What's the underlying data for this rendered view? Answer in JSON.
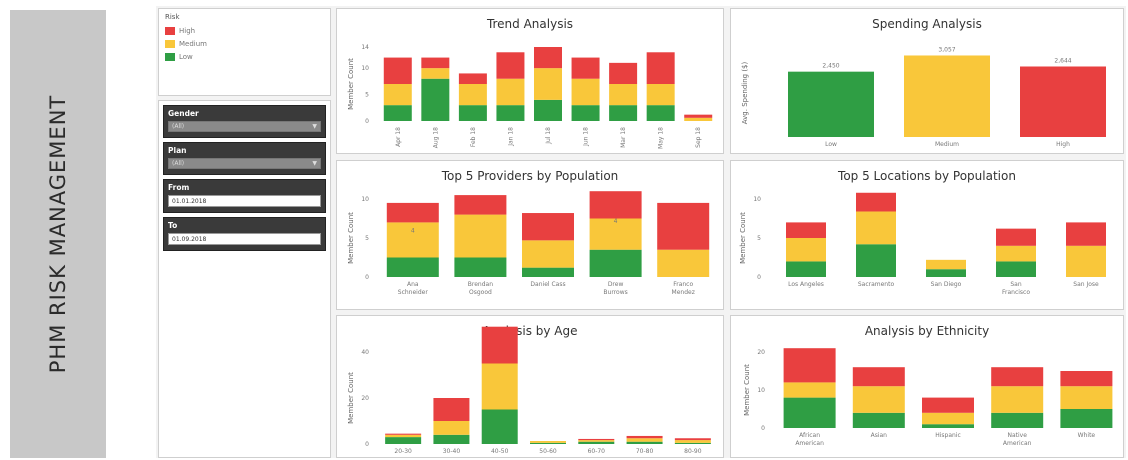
{
  "app": {
    "banner_title": "PHM RISK MANAGEMENT"
  },
  "legend": {
    "title": "Risk",
    "items": [
      {
        "label": "High",
        "color": "#e84040"
      },
      {
        "label": "Medium",
        "color": "#f9c73a"
      },
      {
        "label": "Low",
        "color": "#2f9e44"
      }
    ]
  },
  "filters": {
    "gender": {
      "label": "Gender",
      "value": "(All)"
    },
    "plan": {
      "label": "Plan",
      "value": "(All)"
    },
    "from": {
      "label": "From",
      "value": "01.01.2018"
    },
    "to": {
      "label": "To",
      "value": "01.09.2018"
    }
  },
  "chart_data": [
    {
      "id": "trend",
      "type": "bar",
      "title": "Trend Analysis",
      "ylabel": "Member Count",
      "ylim": [
        0,
        14
      ],
      "yticks": [
        0,
        5,
        10,
        14
      ],
      "categories": [
        "Apr 18",
        "Aug 18",
        "Feb 18",
        "Jan 18",
        "Jul 18",
        "Jun 18",
        "Mar 18",
        "May 18",
        "Sep 18"
      ],
      "series": [
        {
          "name": "Low",
          "values": [
            3,
            8,
            3,
            3,
            4,
            3,
            3,
            3,
            0
          ]
        },
        {
          "name": "Medium",
          "values": [
            4,
            2,
            4,
            5,
            6,
            5,
            4,
            4,
            0.6
          ]
        },
        {
          "name": "High",
          "values": [
            5,
            2,
            2,
            5,
            4,
            4,
            4,
            6,
            0.6
          ]
        }
      ]
    },
    {
      "id": "spending",
      "type": "bar",
      "title": "Spending Analysis",
      "ylabel": "Avg. Spending ($)",
      "ylim": [
        0,
        3300
      ],
      "categories": [
        "Low",
        "Medium",
        "High"
      ],
      "values": [
        2450,
        3057,
        2644
      ],
      "labels": [
        "2,450",
        "3,057",
        "2,644"
      ],
      "colors": [
        "#2f9e44",
        "#f9c73a",
        "#e84040"
      ]
    },
    {
      "id": "providers",
      "type": "bar",
      "title": "Top 5 Providers by Population",
      "ylabel": "Member Count",
      "ylim": [
        0,
        10
      ],
      "yticks": [
        0,
        5,
        10
      ],
      "categories": [
        "Ana Schneider",
        "Brendan Osgood",
        "Daniel Cass",
        "Drew Burrows",
        "Franco Mendez"
      ],
      "series": [
        {
          "name": "Low",
          "values": [
            2.5,
            2.5,
            1.2,
            3.5,
            0
          ]
        },
        {
          "name": "Medium",
          "values": [
            4.5,
            5.5,
            3.5,
            4,
            3.5
          ]
        },
        {
          "name": "High",
          "values": [
            2.5,
            2.5,
            3.5,
            3.5,
            6
          ]
        }
      ],
      "bar_labels": [
        {
          "index": 0,
          "text": "4"
        },
        {
          "index": 3,
          "text": "4"
        }
      ]
    },
    {
      "id": "locations",
      "type": "bar",
      "title": "Top 5 Locations by Population",
      "ylabel": "Member Count",
      "ylim": [
        0,
        10
      ],
      "yticks": [
        0,
        5,
        10
      ],
      "categories": [
        "Los Angeles",
        "Sacramento",
        "San Diego",
        "San Francisco",
        "San Jose"
      ],
      "series": [
        {
          "name": "Low",
          "values": [
            2,
            4.2,
            1,
            2,
            0
          ]
        },
        {
          "name": "Medium",
          "values": [
            3,
            4.2,
            1.2,
            2,
            4
          ]
        },
        {
          "name": "High",
          "values": [
            2,
            2.4,
            0,
            2.2,
            3
          ]
        }
      ]
    },
    {
      "id": "age",
      "type": "bar",
      "title": "Analysis by Age",
      "ylabel": "Member Count",
      "ylim": [
        0,
        40
      ],
      "yticks": [
        0,
        20,
        40
      ],
      "categories": [
        "20-30",
        "30-40",
        "40-50",
        "50-60",
        "60-70",
        "70-80",
        "80-90"
      ],
      "series": [
        {
          "name": "Low",
          "values": [
            3,
            4,
            15,
            0.5,
            1,
            1,
            0.5
          ]
        },
        {
          "name": "Medium",
          "values": [
            1,
            6,
            20,
            0.8,
            0.7,
            1.5,
            1.2
          ]
        },
        {
          "name": "High",
          "values": [
            0.5,
            10,
            16,
            0,
            0.5,
            1,
            0.8
          ]
        }
      ]
    },
    {
      "id": "ethnicity",
      "type": "bar",
      "title": "Analysis by Ethnicity",
      "ylabel": "Member Count",
      "ylim": [
        0,
        20
      ],
      "yticks": [
        0,
        10,
        20
      ],
      "categories": [
        "African American",
        "Asian",
        "Hispanic",
        "Native American",
        "White"
      ],
      "series": [
        {
          "name": "Low",
          "values": [
            8,
            4,
            1,
            4,
            5
          ]
        },
        {
          "name": "Medium",
          "values": [
            4,
            7,
            3,
            7,
            6
          ]
        },
        {
          "name": "High",
          "values": [
            9,
            5,
            4,
            5,
            4
          ]
        }
      ]
    }
  ]
}
